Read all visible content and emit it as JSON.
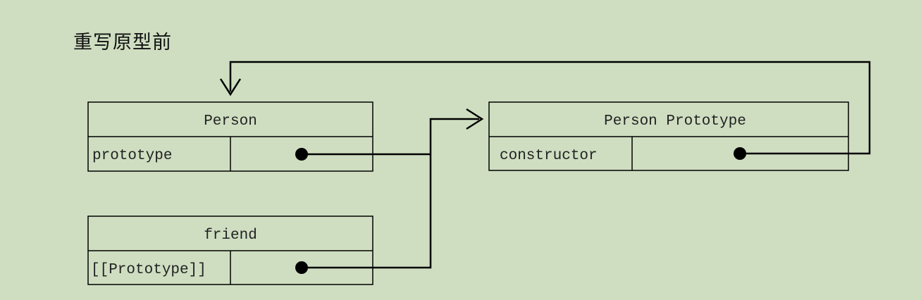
{
  "title": "重写原型前",
  "colors": {
    "background": "#cfdec1",
    "line": "#000000"
  },
  "person": {
    "name": "Person",
    "field_label": "prototype"
  },
  "prototype_obj": {
    "name": "Person Prototype",
    "field_label": "constructor"
  },
  "friend": {
    "name": "friend",
    "field_label": "[[Prototype]]"
  }
}
